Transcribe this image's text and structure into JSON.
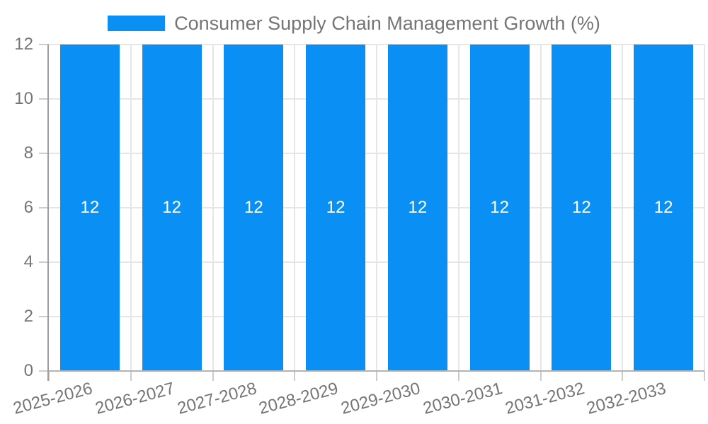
{
  "chart_data": {
    "type": "bar",
    "title": "Consumer Supply Chain Management Growth (%)",
    "categories": [
      "2025-2026",
      "2026-2027",
      "2027-2028",
      "2028-2029",
      "2029-2030",
      "2030-2031",
      "2031-2032",
      "2032-2033"
    ],
    "values": [
      12,
      12,
      12,
      12,
      12,
      12,
      12,
      12
    ],
    "bar_value_labels": [
      "12",
      "12",
      "12",
      "12",
      "12",
      "12",
      "12",
      "12"
    ],
    "yticks": [
      0,
      2,
      4,
      6,
      8,
      10,
      12
    ],
    "ylim": [
      0,
      12
    ],
    "xlabel": "",
    "ylabel": "",
    "grid": true,
    "legend": {
      "position": "top",
      "entries": [
        {
          "label": "Consumer Supply Chain Management Growth (%)",
          "color": "#0a90f4"
        }
      ]
    },
    "colors": {
      "bar": "#0a90f4",
      "bar_label": "#ffffff",
      "grid": "#e6e6e6",
      "axis_line": "#9e9e9e",
      "baseline": "#b3b3b3",
      "tick": "#cccccc",
      "text": "#757575",
      "background": "#ffffff"
    }
  }
}
